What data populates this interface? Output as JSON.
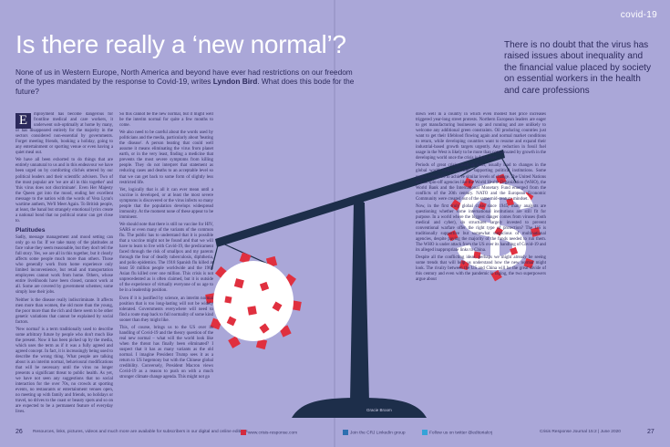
{
  "section_tag": "covid-19",
  "headline": "Is there really a ‘new normal’?",
  "standfirst": {
    "text": "None of us in Western Europe, North America and beyond have ever had restrictions on our freedom of the types mandated by the response to Covid-19, writes ",
    "author": "Lyndon Bird",
    "tail": ". What does this bode for the future?"
  },
  "pullquote": "There is no doubt that the virus has raised issues about inequality and the financial value placed by society on essential workers in the health and care professions",
  "body": {
    "dropcap": "E",
    "col1_p1": "mployment has become dangerous for frontline medical and care workers, it underwent sub-optimally at home by many, or has disappeared entirely for the majority in the sectors considered non-essential by governments. Forget meeting friends, booking a holiday, going to any entertainment or sporting venue or even having a quiet meal out.",
    "col1_p2": "We have all been exhorted to do things that are entirely unnatural to us and in this endeavour we have been urged on by comforting clichés uttered by our political leaders and their scientific advisers. Two of the most popular are 'we are all in this together' and 'this virus does not discriminate'. Even Her Majesty the Queen got into the mood, ending her excellent message to the nation with the words of Vera Lynn's wartime anthem, We'll Meet Again. To British people, at least, the banal but strangely emotional lyrics create a national bond that no political orator can get close to.",
    "subhead": "Platitudes",
    "col1_p3": "Sadly, message management and mood setting can only go so far. If we take many of the platitudes at face value they seem reasonable, but they don't tell the full story. Yes, we are all in this together, but it clearly affects some people much more than others. Those who generally work from home experience only limited inconvenience, but retail and transportation employees cannot work from home. Others, whose entire livelihoods have been closed, cannot work at all. Some are covered by government schemes; some simply lose their jobs.",
    "col1_p4": "Neither is the disease really indiscriminate. It affects men more than women, the old more than the young, the poor more than the rich and there seem to be other genetic variations that cannot be explained by social factors.",
    "col1_p5": "'New normal' is a term traditionally used to describe some arbitrary future by people who don't much like the present. Now it has been picked up by the media, which uses the term as if it was a fully agreed and agreed concept. In fact, it is increasingly being used to describe the wrong thing. What people are talking about is an interim normal, behavioural modifications that will be necessary until the virus no longer presents a significant threat to public health. As yet, we have not seen any suggestions that no social interaction for the over 70s, no crowds at sporting events, no restaurants or entertainment venues open, no meeting up with family and friends, no holidays or travel, no drives to the coast or beauty spots and so on are expected to be a permanent feature of everyday lives.",
    "col2_p1": "So this cannot be the new normal, but it might well be the interim normal for quite a few months to come.",
    "col2_p2": "We also need to be careful about the words used by politicians and the media, particularly about 'beating the disease'. A person beating that could well assume it means eliminating the virus from planet earth, or in the very least, finding a medicine that prevents the most severe symptoms from killing people. They do not interpret that statement as reducing cases and deaths to an acceptable level so that we can get back to some form of slightly less restricted life.",
    "col2_p3": "Yet, logically that is all it can ever mean until a vaccine is developed, or at least the most severe symptoms is discovered or the virus infects so many people that the population develops widespread immunity. At the moment none of these appear to be imminent.",
    "col2_p4": "We should note that there is still no vaccine for HIV, SARS or even many of the variants of the common flu. The public has to understand that it is possible that a vaccine might not be found and that we will have to learn to live with Covid-19, the predicament faced through the risk of smallpox and my parents through the fear of deadly tuberculosis, diphtheria, and polio epidemics. The 1918 Spanish flu killed at least 50 million people worldwide and the 1968 Asian flu killed over one million. This crisis is not unprecedented as is often claimed, but it is outside of the experience of virtually everyone of us age to be in a leadership position.",
    "col2_p5": "Even if it is justified by science, an interim normal position that is too long-lasting will not be widely tolerated. Governments everywhere will need to find a route map back to full normality of some kind sooner than they might like.",
    "col2_p6": "This, of course, brings us to the US over its handling of Covid-19 and the theory question of the real new normal – what will the world look like when the threat has finally been eliminated? I suspect that it has as many variants as the old normal. I imagine President Trump sees it as a return to US hegemony but with the Chinese global credibility. Conversely, President Macron views Covid-19 as a reason to push on with a much stronger climate change agenda. This might not go",
    "col3_p1": "down well in a country in which even modest fuel price increases triggered year-long street protests. Northern European leaders are eager to get manufacturing businesses up and running and are unlikely to welcome any additional green constraints. Oil producing countries just want to get their lifeblood flowing again and normal market conditions to return, while developing countries want to resume and expand their industrial-based growth targets urgently. Any reduction in fossil fuel usage in the West is likely to be more than compensated by growth in the developing world once the crisis is fully over.",
    "col3_p2": "Periods of great crisis, such as wars, usually lead to changes in the global world order and their supporting political institutions. Some expect Covid-19 to achieve similar levels of change. The United Nations and its spin-off agencies like the World Health Organization (WHO), the World Bank and the International Monetary Fund emerged from the conflicts of the 20th century. NATO and the European Economic Community were created out of the same mid-century mindset.",
    "col3_p3": "Now, in the first truly global crisis since 1945, many analysts are questioning whether some international institutions are still fit for purpose. In a world where the biggest danger comes from viruses (both medical and cyber), do structures largely invested to prevent conventional warfare offer the right type of protection? The US is traditionally supportive but somewhat suspicious of multinational agencies, despite paying the majority of the funds needed to run them. The WHO is under attack from the US over its handling of Covid-19 and its alleged inappropriate links to China.",
    "col3_p4": "Despite all the conflicting ideas, perhaps we might already be seeing some trends that will help us understand how the new normal might look. The rivalry between the US and China will be the great divide of this century and even with the pandemic is raging, the two superpowers argue about"
  },
  "credit": "Gracie Broom",
  "footer": {
    "left_page": "26",
    "right_page": "27",
    "left_note": "Resources, links, pictures, videos and much more are available for subscribers in our digital and online editions",
    "site": "www.crisis-response.com",
    "linkedin": "Join the CRJ LinkedIn group",
    "twitter": "Follow us on twitter @editorialcrj",
    "journal": "Crisis Response Journal 15:2 | June 2020"
  }
}
